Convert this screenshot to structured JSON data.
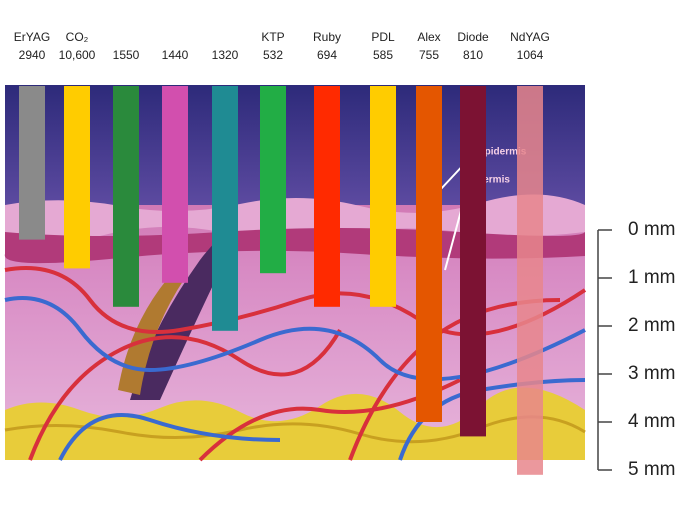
{
  "chart_data": {
    "type": "bar",
    "laser_names": [
      "ErYAG",
      "CO₂",
      null,
      null,
      null,
      "KTP",
      "Ruby",
      "PDL",
      "Alex",
      "Diode",
      "NdYAG"
    ],
    "categories": [
      "2940",
      "10,600",
      "1550",
      "1440",
      "1320",
      "532",
      "694",
      "585",
      "755",
      "810",
      "1064"
    ],
    "values": [
      0.2,
      0.8,
      1.6,
      1.1,
      2.1,
      0.9,
      1.6,
      1.6,
      4.0,
      4.3,
      5.1
    ],
    "colors": [
      "#8a8a8a",
      "#ffcc00",
      "#2a8a3c",
      "#d24fae",
      "#1f8b93",
      "#22ad45",
      "#ff2a00",
      "#ffcc00",
      "#e45600",
      "#7c1233",
      "#e8868c"
    ],
    "ylim": [
      -3,
      5
    ],
    "yticks": [
      {
        "value": 0,
        "label": "0 mm"
      },
      {
        "value": 1,
        "label": "1 mm"
      },
      {
        "value": 2,
        "label": "2 mm"
      },
      {
        "value": 3,
        "label": "3 mm"
      },
      {
        "value": 4,
        "label": "4 mm"
      },
      {
        "value": 5,
        "label": "5 mm"
      }
    ],
    "annotations": [
      "Epidermis",
      "Dermis"
    ]
  }
}
